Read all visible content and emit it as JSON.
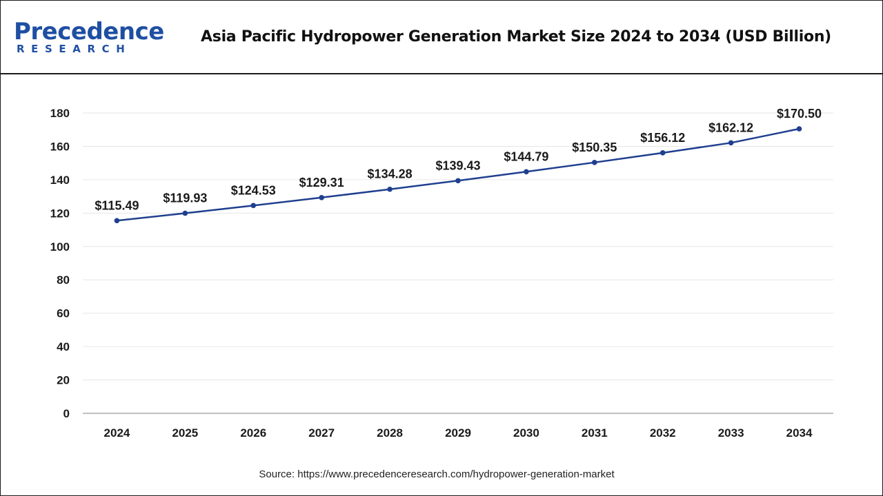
{
  "brand": {
    "name_main": "Precedence",
    "name_sub": "RESEARCH",
    "color": "#1f4fa3"
  },
  "source": "Source: https://www.precedenceresearch.com/hydropower-generation-market",
  "chart_data": {
    "type": "line",
    "title": "Asia Pacific Hydropower Generation Market Size 2024 to 2034 (USD Billion)",
    "xlabel": "",
    "ylabel": "",
    "categories": [
      "2024",
      "2025",
      "2026",
      "2027",
      "2028",
      "2029",
      "2030",
      "2031",
      "2032",
      "2033",
      "2034"
    ],
    "series": [
      {
        "values": [
          115.49,
          119.93,
          124.53,
          129.31,
          134.28,
          139.43,
          144.79,
          150.35,
          156.12,
          162.12,
          170.5
        ],
        "labels": [
          "$115.49",
          "$119.93",
          "$124.53",
          "$129.31",
          "$134.28",
          "$139.43",
          "$144.79",
          "$150.35",
          "$156.12",
          "$162.12",
          "$170.50"
        ],
        "color": "#1f3f8f"
      }
    ],
    "yticks": [
      "0",
      "20",
      "40",
      "60",
      "80",
      "100",
      "120",
      "140",
      "160",
      "180"
    ],
    "ylim": [
      0,
      180
    ],
    "grid": true,
    "legend": "none"
  }
}
